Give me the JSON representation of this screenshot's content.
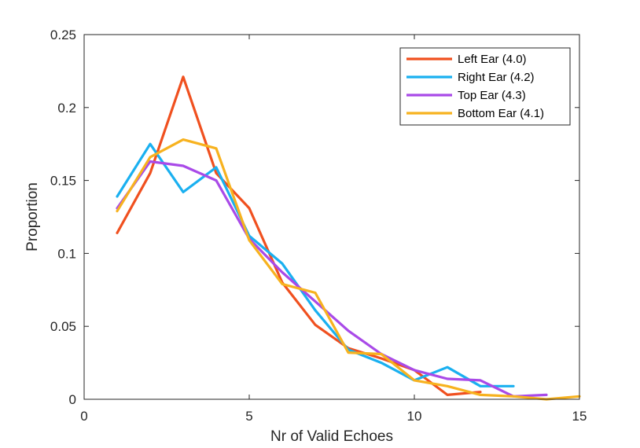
{
  "chart_data": {
    "type": "line",
    "xlabel": "Nr of Valid Echoes",
    "ylabel": "Proportion",
    "xlim": [
      0,
      15
    ],
    "ylim": [
      0,
      0.25
    ],
    "xticks": [
      0,
      5,
      10,
      15
    ],
    "yticks": [
      0,
      0.05,
      0.1,
      0.15,
      0.2,
      0.25
    ],
    "xtick_labels": [
      "0",
      "5",
      "10",
      "15"
    ],
    "ytick_labels": [
      "0",
      "0.05",
      "0.1",
      "0.15",
      "0.2",
      "0.25"
    ],
    "grid": false,
    "legend_position": "top-right",
    "series": [
      {
        "name": "Left Ear (4.0)",
        "color": "#f0501f",
        "x": [
          1,
          2,
          3,
          4,
          5,
          6,
          7,
          8,
          9,
          10,
          11,
          12
        ],
        "y": [
          0.114,
          0.155,
          0.221,
          0.155,
          0.131,
          0.08,
          0.051,
          0.035,
          0.028,
          0.02,
          0.003,
          0.005
        ]
      },
      {
        "name": "Right Ear (4.2)",
        "color": "#1ab0f0",
        "x": [
          1,
          2,
          3,
          4,
          5,
          6,
          7,
          8,
          9,
          10,
          11,
          12,
          13
        ],
        "y": [
          0.139,
          0.175,
          0.142,
          0.159,
          0.112,
          0.093,
          0.061,
          0.034,
          0.025,
          0.013,
          0.022,
          0.009,
          0.009
        ]
      },
      {
        "name": "Top Ear (4.3)",
        "color": "#a94ae8",
        "x": [
          1,
          2,
          3,
          4,
          5,
          6,
          7,
          8,
          9,
          10,
          11,
          12,
          13,
          14
        ],
        "y": [
          0.131,
          0.163,
          0.16,
          0.15,
          0.11,
          0.087,
          0.067,
          0.047,
          0.031,
          0.02,
          0.014,
          0.013,
          0.002,
          0.003
        ]
      },
      {
        "name": "Bottom Ear (4.1)",
        "color": "#f7b21f",
        "x": [
          1,
          2,
          3,
          4,
          5,
          6,
          7,
          8,
          9,
          10,
          11,
          12,
          13,
          14,
          15
        ],
        "y": [
          0.129,
          0.166,
          0.178,
          0.172,
          0.109,
          0.079,
          0.073,
          0.032,
          0.031,
          0.013,
          0.009,
          0.003,
          0.002,
          0.0,
          0.002
        ]
      }
    ]
  }
}
